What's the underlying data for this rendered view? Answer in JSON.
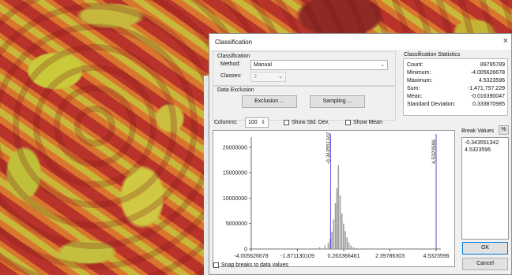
{
  "dialog": {
    "title": "Classification",
    "close_glyph": "×"
  },
  "classification": {
    "group_label": "Classification",
    "method_label": "Method:",
    "method_value": "Manual",
    "classes_label": "Classes:",
    "classes_value": "2"
  },
  "exclusion": {
    "group_label": "Data Exclusion",
    "exclusion_button": "Exclusion ...",
    "sampling_button": "Sampling ..."
  },
  "stats": {
    "group_label": "Classification Statistics",
    "rows": [
      {
        "key": "Count:",
        "value": "89795789"
      },
      {
        "key": "Minimum:",
        "value": "-4.005626678"
      },
      {
        "key": "Maximum:",
        "value": "4.5323596"
      },
      {
        "key": "Sum:",
        "value": "-1,471,757.229"
      },
      {
        "key": "Mean:",
        "value": "-0.016390047"
      },
      {
        "key": "Standard Deviation:",
        "value": "0.333870985"
      }
    ]
  },
  "histogram_controls": {
    "columns_label": "Columns:",
    "columns_value": "100",
    "show_std_dev": "Show Std. Dev.",
    "show_mean": "Show Mean"
  },
  "break_values": {
    "label": "Break Values",
    "percent_button": "%",
    "values": [
      "-0.343551342",
      "4.5323596"
    ]
  },
  "snap": {
    "label": "Snap breaks to data values"
  },
  "buttons": {
    "ok": "OK",
    "cancel": "Cancel"
  },
  "chart_data": {
    "type": "bar",
    "ylim": [
      0,
      22000000
    ],
    "xlim": [
      -4.005626678,
      4.5323596
    ],
    "y_ticks": [
      "20000000",
      "15000000",
      "10000000",
      "5000000",
      "0"
    ],
    "y_tick_values": [
      20000000,
      15000000,
      10000000,
      5000000,
      0
    ],
    "x_ticks": [
      "-4.005626678",
      "-1.871130109",
      "0.263366461",
      "2.39786303",
      "4.5323596"
    ],
    "x_tick_values": [
      -4.005626678,
      -1.871130109,
      0.263366461,
      2.39786303,
      4.5323596
    ],
    "break_lines": [
      {
        "value": -0.343551342,
        "label": "-0.343551342"
      },
      {
        "value": 4.5323596,
        "label": "4.5323596"
      }
    ],
    "bins_x": [
      -1.45,
      -1.1,
      -0.85,
      -0.6,
      -0.45,
      -0.36,
      -0.28,
      -0.2,
      -0.12,
      -0.05,
      0.02,
      0.1,
      0.18,
      0.26,
      0.34,
      0.42,
      0.5,
      0.6,
      0.72,
      0.85,
      1.0,
      1.2
    ],
    "bins_y": [
      60000,
      150000,
      350000,
      700000,
      1200000,
      2000000,
      3400000,
      5800000,
      9000000,
      12000000,
      16500000,
      10500000,
      7000000,
      5000000,
      3500000,
      2300000,
      1300000,
      700000,
      350000,
      150000,
      70000,
      30000
    ]
  }
}
